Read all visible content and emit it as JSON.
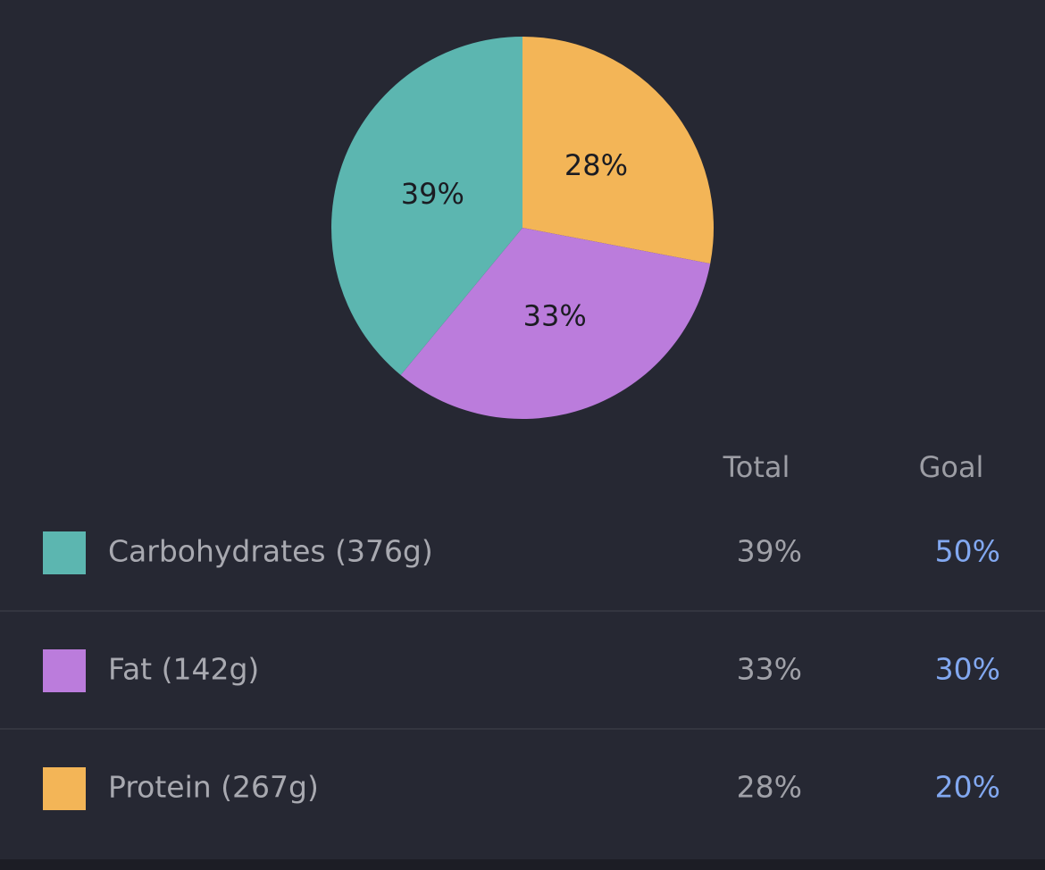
{
  "chart_data": {
    "type": "pie",
    "values": [
      28,
      33,
      39
    ],
    "value_labels": [
      "28%",
      "33%",
      "39%"
    ],
    "colors": [
      "#f3b557",
      "#bb7cdc",
      "#5cb6b0"
    ]
  },
  "table": {
    "header": [
      "Total",
      "Goal"
    ],
    "rows": [
      {
        "label": "Carbohydrates (376g)",
        "total": "39%",
        "goal": "50%",
        "color": "#5cb6b0"
      },
      {
        "label": "Fat (142g)",
        "total": "33%",
        "goal": "30%",
        "color": "#bb7cdc"
      },
      {
        "label": "Protein (267g)",
        "total": "28%",
        "goal": "20%",
        "color": "#f3b557"
      }
    ]
  }
}
